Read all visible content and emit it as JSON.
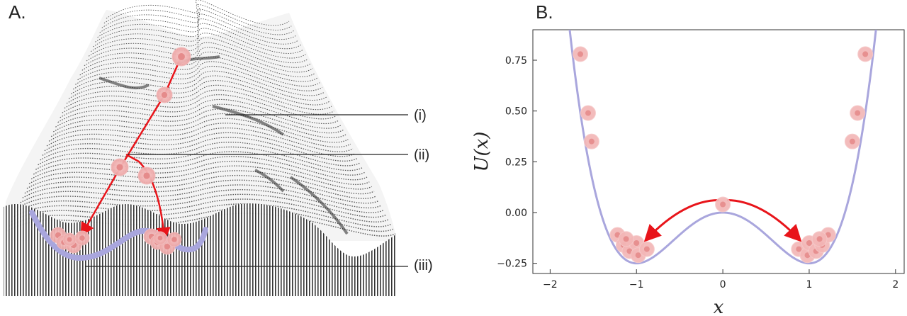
{
  "panel_a": {
    "letter": "A.",
    "labels": [
      "(i)",
      "(ii)",
      "(iii)"
    ]
  },
  "panel_b": {
    "letter": "B."
  },
  "chart_data": {
    "type": "line",
    "xlabel": "x",
    "ylabel": "U(x)",
    "xlim": [
      -2.2,
      2.1
    ],
    "ylim": [
      -0.3,
      0.9
    ],
    "xticks": [
      -2,
      -1,
      0,
      1,
      2
    ],
    "xtick_labels": [
      "−2",
      "−1",
      "0",
      "1",
      "2"
    ],
    "yticks": [
      -0.25,
      0,
      0.25,
      0.5,
      0.75
    ],
    "ytick_labels": [
      "−0.25",
      "0.00",
      "0.25",
      "0.50",
      "0.75"
    ],
    "grid": false,
    "series": [
      {
        "function": "0.25*x^4 - 0.5*x^2",
        "x": [
          -1.75,
          -1.7,
          -1.6,
          -1.5,
          -1.4,
          -1.3,
          -1.2,
          -1.1,
          -1.0,
          -0.9,
          -0.8,
          -0.6,
          -0.4,
          -0.2,
          0,
          0.2,
          0.4,
          0.6,
          0.8,
          0.9,
          1.0,
          1.1,
          1.2,
          1.3,
          1.4,
          1.5,
          1.6,
          1.7,
          1.75
        ],
        "y": [
          0.812,
          0.643,
          0.358,
          0.141,
          -0.02,
          -0.131,
          -0.202,
          -0.239,
          -0.25,
          -0.241,
          -0.218,
          -0.148,
          -0.074,
          -0.02,
          0,
          -0.02,
          -0.074,
          -0.148,
          -0.218,
          -0.241,
          -0.25,
          -0.239,
          -0.202,
          -0.131,
          -0.02,
          0.141,
          0.358,
          0.643,
          0.812
        ]
      }
    ],
    "cells": [
      {
        "x": -1.65,
        "y": 0.78
      },
      {
        "x": -1.56,
        "y": 0.49
      },
      {
        "x": -1.52,
        "y": 0.35
      },
      {
        "x": 1.65,
        "y": 0.78
      },
      {
        "x": 1.56,
        "y": 0.49
      },
      {
        "x": 1.5,
        "y": 0.35
      },
      {
        "x": 0.0,
        "y": 0.04
      },
      {
        "x": -1.22,
        "y": -0.11
      },
      {
        "x": -1.15,
        "y": -0.16
      },
      {
        "x": -1.08,
        "y": -0.19
      },
      {
        "x": -1.0,
        "y": -0.15
      },
      {
        "x": -0.98,
        "y": -0.21
      },
      {
        "x": -0.88,
        "y": -0.18
      },
      {
        "x": -1.12,
        "y": -0.13
      },
      {
        "x": 0.88,
        "y": -0.18
      },
      {
        "x": 0.98,
        "y": -0.21
      },
      {
        "x": 1.0,
        "y": -0.15
      },
      {
        "x": 1.08,
        "y": -0.19
      },
      {
        "x": 1.15,
        "y": -0.16
      },
      {
        "x": 1.22,
        "y": -0.11
      },
      {
        "x": 1.12,
        "y": -0.13
      }
    ],
    "colors": {
      "curve": "#a9a6dd",
      "cell_fill": "#f3b7b7",
      "cell_nucleus": "#e58b8b",
      "arrow": "#e8141a"
    }
  }
}
